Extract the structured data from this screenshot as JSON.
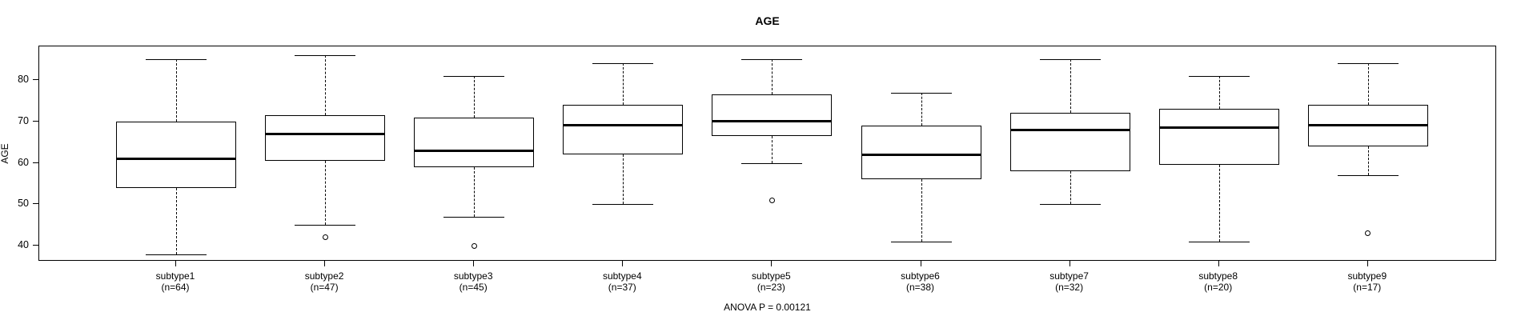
{
  "chart_data": {
    "type": "boxplot",
    "title": "AGE",
    "ylabel": "AGE",
    "xlabel": "",
    "annotation": "ANOVA P = 0.00121",
    "ylim": [
      36.2,
      88.1
    ],
    "yticks": [
      40,
      50,
      60,
      70,
      80
    ],
    "grid": false,
    "legend": "none",
    "categories": [
      "subtype1",
      "subtype2",
      "subtype3",
      "subtype4",
      "subtype5",
      "subtype6",
      "subtype7",
      "subtype8",
      "subtype9"
    ],
    "series": [
      {
        "name": "subtype1",
        "n_label": "(n=64)",
        "n": 64,
        "whisker_low": 38,
        "q1": 54,
        "median": 61,
        "q3": 70,
        "whisker_high": 85,
        "outliers": []
      },
      {
        "name": "subtype2",
        "n_label": "(n=47)",
        "n": 47,
        "whisker_low": 45,
        "q1": 60.5,
        "median": 67,
        "q3": 71.5,
        "whisker_high": 86,
        "outliers": [
          42
        ]
      },
      {
        "name": "subtype3",
        "n_label": "(n=45)",
        "n": 45,
        "whisker_low": 47,
        "q1": 59,
        "median": 63,
        "q3": 71,
        "whisker_high": 81,
        "outliers": [
          40
        ]
      },
      {
        "name": "subtype4",
        "n_label": "(n=37)",
        "n": 37,
        "whisker_low": 50,
        "q1": 62,
        "median": 69,
        "q3": 74,
        "whisker_high": 84,
        "outliers": []
      },
      {
        "name": "subtype5",
        "n_label": "(n=23)",
        "n": 23,
        "whisker_low": 60,
        "q1": 66.5,
        "median": 70,
        "q3": 76.5,
        "whisker_high": 85,
        "outliers": [
          51
        ]
      },
      {
        "name": "subtype6",
        "n_label": "(n=38)",
        "n": 38,
        "whisker_low": 41,
        "q1": 56,
        "median": 62,
        "q3": 69,
        "whisker_high": 77,
        "outliers": []
      },
      {
        "name": "subtype7",
        "n_label": "(n=32)",
        "n": 32,
        "whisker_low": 50,
        "q1": 58,
        "median": 68,
        "q3": 72,
        "whisker_high": 85,
        "outliers": []
      },
      {
        "name": "subtype8",
        "n_label": "(n=20)",
        "n": 20,
        "whisker_low": 41,
        "q1": 59.5,
        "median": 68.5,
        "q3": 73,
        "whisker_high": 81,
        "outliers": []
      },
      {
        "name": "subtype9",
        "n_label": "(n=17)",
        "n": 17,
        "whisker_low": 57,
        "q1": 64,
        "median": 69,
        "q3": 74,
        "whisker_high": 84,
        "outliers": [
          43
        ]
      }
    ]
  }
}
